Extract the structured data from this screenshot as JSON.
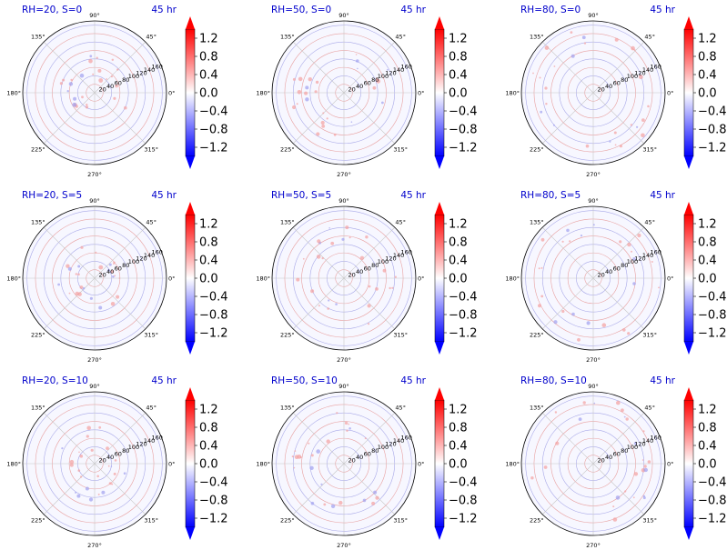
{
  "figure": {
    "rows": 3,
    "cols": 3
  },
  "chart_data": [
    {
      "type": "heatmap",
      "projection": "polar",
      "title_left": "RH=20, S=0",
      "title_right": "45 hr",
      "radial_ticks": [
        20,
        40,
        60,
        80,
        100,
        120,
        140,
        160
      ],
      "theta_ticks": [
        "0°",
        "45°",
        "90°",
        "135°",
        "180°",
        "225°",
        "270°",
        "315°"
      ],
      "colorbar": {
        "colormap": "bwr",
        "ticks": [
          "1.2",
          "0.8",
          "0.4",
          "0.0",
          "−0.4",
          "−0.8",
          "−1.2"
        ],
        "range": [
          -1.4,
          1.4
        ],
        "extend": "both"
      }
    },
    {
      "type": "heatmap",
      "projection": "polar",
      "title_left": "RH=50, S=0",
      "title_right": "45 hr",
      "radial_ticks": [
        20,
        40,
        60,
        80,
        100,
        120,
        140,
        160
      ],
      "theta_ticks": [
        "0°",
        "45°",
        "90°",
        "135°",
        "180°",
        "225°",
        "270°",
        "315°"
      ],
      "colorbar": {
        "colormap": "bwr",
        "ticks": [
          "1.2",
          "0.8",
          "0.4",
          "0.0",
          "−0.4",
          "−0.8",
          "−1.2"
        ],
        "range": [
          -1.4,
          1.4
        ],
        "extend": "both"
      }
    },
    {
      "type": "heatmap",
      "projection": "polar",
      "title_left": "RH=80, S=0",
      "title_right": "45 hr",
      "radial_ticks": [
        20,
        40,
        60,
        80,
        100,
        120,
        140,
        160
      ],
      "theta_ticks": [
        "0°",
        "45°",
        "90°",
        "135°",
        "180°",
        "225°",
        "270°",
        "315°"
      ],
      "colorbar": {
        "colormap": "bwr",
        "ticks": [
          "1.2",
          "0.8",
          "0.4",
          "0.0",
          "−0.4",
          "−0.8",
          "−1.2"
        ],
        "range": [
          -1.4,
          1.4
        ],
        "extend": "both"
      }
    },
    {
      "type": "heatmap",
      "projection": "polar",
      "title_left": "RH=20, S=5",
      "title_right": "45 hr",
      "radial_ticks": [
        20,
        40,
        60,
        80,
        100,
        120,
        140,
        160
      ],
      "theta_ticks": [
        "0°",
        "45°",
        "90°",
        "135°",
        "180°",
        "225°",
        "270°",
        "315°"
      ],
      "colorbar": {
        "colormap": "bwr",
        "ticks": [
          "1.2",
          "0.8",
          "0.4",
          "0.0",
          "−0.4",
          "−0.8",
          "−1.2"
        ],
        "range": [
          -1.4,
          1.4
        ],
        "extend": "both"
      }
    },
    {
      "type": "heatmap",
      "projection": "polar",
      "title_left": "RH=50, S=5",
      "title_right": "45 hr",
      "radial_ticks": [
        20,
        40,
        60,
        80,
        100,
        120,
        140,
        160
      ],
      "theta_ticks": [
        "0°",
        "45°",
        "90°",
        "135°",
        "180°",
        "225°",
        "270°",
        "315°"
      ],
      "colorbar": {
        "colormap": "bwr",
        "ticks": [
          "1.2",
          "0.8",
          "0.4",
          "0.0",
          "−0.4",
          "−0.8",
          "−1.2"
        ],
        "range": [
          -1.4,
          1.4
        ],
        "extend": "both"
      }
    },
    {
      "type": "heatmap",
      "projection": "polar",
      "title_left": "RH=80, S=5",
      "title_right": "45 hr",
      "radial_ticks": [
        20,
        40,
        60,
        80,
        100,
        120,
        140,
        160
      ],
      "theta_ticks": [
        "0°",
        "45°",
        "90°",
        "135°",
        "180°",
        "225°",
        "270°",
        "315°"
      ],
      "colorbar": {
        "colormap": "bwr",
        "ticks": [
          "1.2",
          "0.8",
          "0.4",
          "0.0",
          "−0.4",
          "−0.8",
          "−1.2"
        ],
        "range": [
          -1.4,
          1.4
        ],
        "extend": "both"
      }
    },
    {
      "type": "heatmap",
      "projection": "polar",
      "title_left": "RH=20, S=10",
      "title_right": "45 hr",
      "radial_ticks": [
        20,
        40,
        60,
        80,
        100,
        120,
        140,
        160
      ],
      "theta_ticks": [
        "0°",
        "45°",
        "90°",
        "135°",
        "180°",
        "225°",
        "270°",
        "315°"
      ],
      "colorbar": {
        "colormap": "bwr",
        "ticks": [
          "1.2",
          "0.8",
          "0.4",
          "0.0",
          "−0.4",
          "−0.8",
          "−1.2"
        ],
        "range": [
          -1.4,
          1.4
        ],
        "extend": "both"
      }
    },
    {
      "type": "heatmap",
      "projection": "polar",
      "title_left": "RH=50, S=10",
      "title_right": "45 hr",
      "radial_ticks": [
        20,
        40,
        60,
        80,
        100,
        120,
        140,
        160
      ],
      "theta_ticks": [
        "0°",
        "45°",
        "90°",
        "135°",
        "180°",
        "225°",
        "270°",
        "315°"
      ],
      "colorbar": {
        "colormap": "bwr",
        "ticks": [
          "1.2",
          "0.8",
          "0.4",
          "0.0",
          "−0.4",
          "−0.8",
          "−1.2"
        ],
        "range": [
          -1.4,
          1.4
        ],
        "extend": "both"
      }
    },
    {
      "type": "heatmap",
      "projection": "polar",
      "title_left": "RH=80, S=10",
      "title_right": "45 hr",
      "radial_ticks": [
        20,
        40,
        60,
        80,
        100,
        120,
        140,
        160
      ],
      "theta_ticks": [
        "0°",
        "45°",
        "90°",
        "135°",
        "180°",
        "225°",
        "270°",
        "315°"
      ],
      "colorbar": {
        "colormap": "bwr",
        "ticks": [
          "1.2",
          "0.8",
          "0.4",
          "0.0",
          "−0.4",
          "−0.8",
          "−1.2"
        ],
        "range": [
          -1.4,
          1.4
        ],
        "extend": "both"
      }
    }
  ],
  "colors": {
    "title": "#0000cc",
    "grid_red": "#e8a0a0",
    "grid_blue": "#a8a8e8",
    "field_bg": "#f7f7ff",
    "axis": "#000000",
    "colorbar_top": "#ff0000",
    "colorbar_mid": "#ffffff",
    "colorbar_bottom": "#0000ff"
  }
}
